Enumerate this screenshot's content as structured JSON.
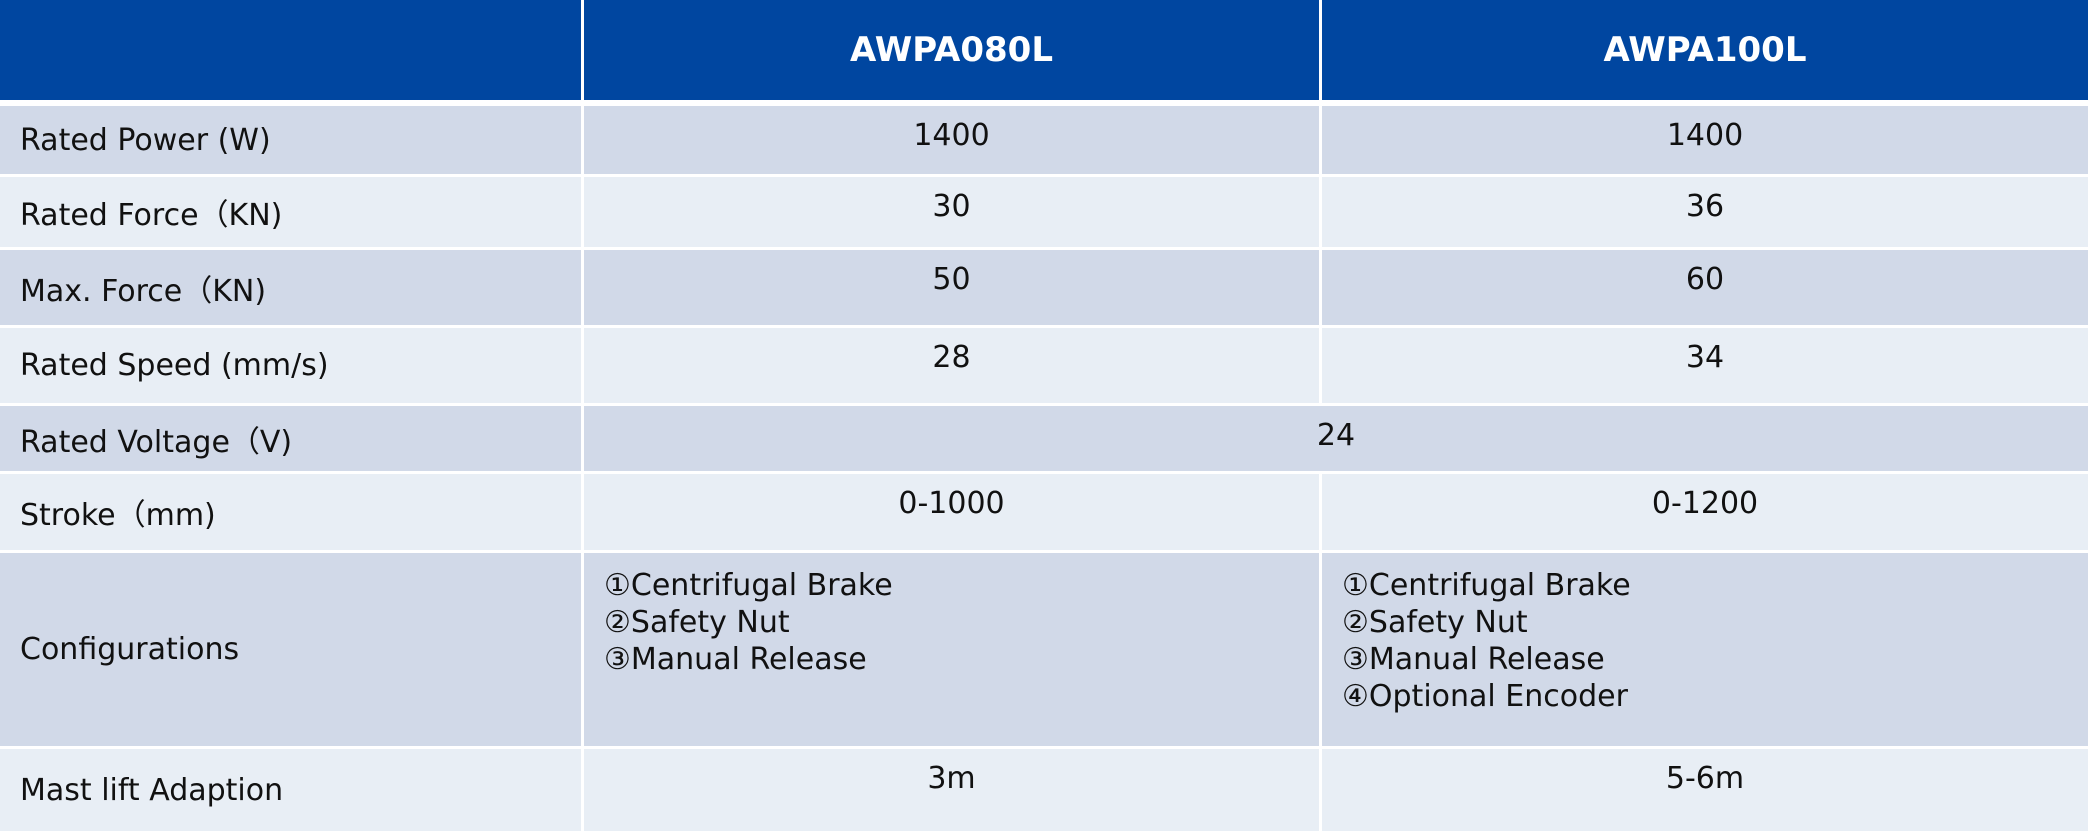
{
  "table": {
    "header": {
      "corner": "",
      "models": [
        "AWPA080L",
        "AWPA100L"
      ]
    },
    "rows": [
      {
        "label": "Rated Power (W)",
        "values": [
          "1400",
          "1400"
        ]
      },
      {
        "label": "Rated Force（KN)",
        "values": [
          "30",
          "36"
        ]
      },
      {
        "label": "Max. Force（KN)",
        "values": [
          "50",
          "60"
        ]
      },
      {
        "label": "Rated Speed (mm/s)",
        "values": [
          "28",
          "34"
        ]
      },
      {
        "label": "Rated Voltage（V)",
        "merged_value": "24"
      },
      {
        "label": "Stroke（mm)",
        "values": [
          "0-1000",
          "0-1200"
        ]
      },
      {
        "label": "Configurations",
        "config_lists": [
          [
            "①Centrifugal Brake",
            "②Safety Nut",
            "③Manual Release"
          ],
          [
            "①Centrifugal Brake",
            "②Safety Nut",
            "③Manual Release",
            "④Optional Encoder"
          ]
        ]
      },
      {
        "label": "Mast lift Adaption",
        "values": [
          "3m",
          "5-6m"
        ]
      }
    ]
  },
  "colors": {
    "header_bg": "#0046a0",
    "header_text": "#ffffff",
    "row_dark": "#d1d9e8",
    "row_light": "#e8eef5",
    "grid_lines": "#ffffff"
  }
}
